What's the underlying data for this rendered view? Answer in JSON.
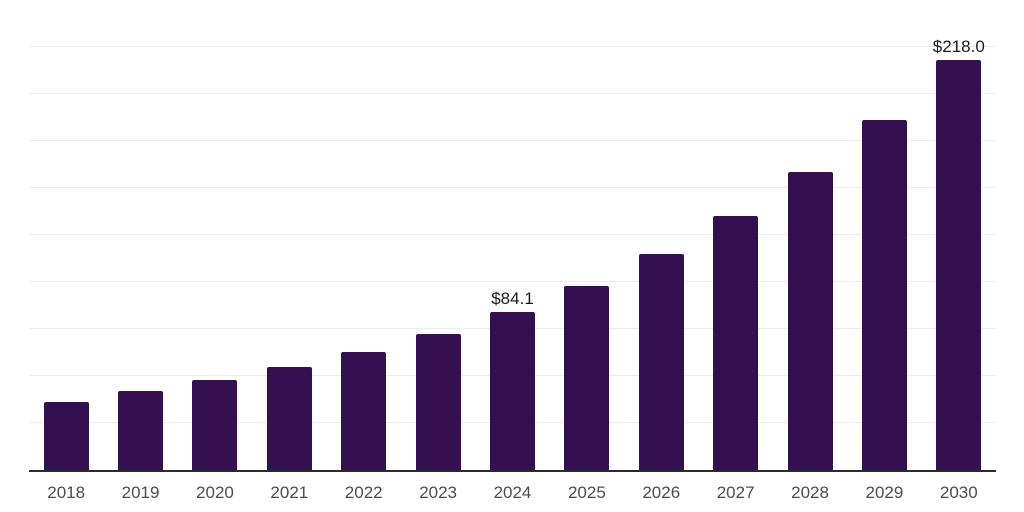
{
  "chart_data": {
    "type": "bar",
    "title": "",
    "xlabel": "",
    "ylabel": "",
    "categories": [
      "2018",
      "2019",
      "2020",
      "2021",
      "2022",
      "2023",
      "2024",
      "2025",
      "2026",
      "2027",
      "2028",
      "2029",
      "2030"
    ],
    "values": [
      36.3,
      42.1,
      47.7,
      54.7,
      62.9,
      72.5,
      84.1,
      98.1,
      114.7,
      134.9,
      158.4,
      186.1,
      218.0
    ],
    "value_prefix": "$",
    "labeled_bars": [
      {
        "category": "2024",
        "label": "$84.1"
      },
      {
        "category": "2030",
        "label": "$218.0"
      }
    ],
    "ylim": [
      0,
      250
    ],
    "gridline_step": 25,
    "grid": "horizontal",
    "legend": "none",
    "y_tick_labels_visible": false,
    "colors": {
      "bar": "#341051",
      "grid": "#ececec",
      "axis": "#2b2b2b",
      "tick_label": "#4d4d4d",
      "value_label": "#1a1a1a",
      "background": "#ffffff"
    }
  }
}
